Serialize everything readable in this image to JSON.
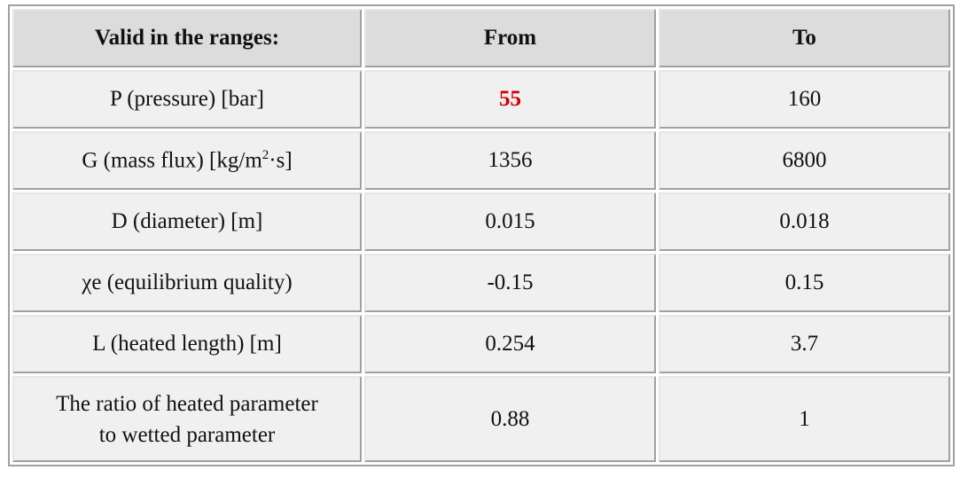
{
  "table": {
    "header": [
      "Valid in the ranges:",
      "From",
      "To"
    ],
    "rows": [
      {
        "label": "P (pressure) [bar]",
        "from": "55",
        "to": "160"
      },
      {
        "label_parts": [
          "G (mass flux) [kg/m",
          "2",
          "·s]"
        ],
        "from": "1356",
        "to": "6800"
      },
      {
        "label": "D (diameter) [m]",
        "from": "0.015",
        "to": "0.018"
      },
      {
        "label": "χe (equilibrium quality)",
        "from": "-0.15",
        "to": "0.15"
      },
      {
        "label": "L (heated length) [m]",
        "from": "0.254",
        "to": "3.7"
      },
      {
        "label_lines": [
          "The ratio of heated parameter",
          "to wetted parameter"
        ],
        "from": "0.88",
        "to": "1"
      }
    ]
  }
}
